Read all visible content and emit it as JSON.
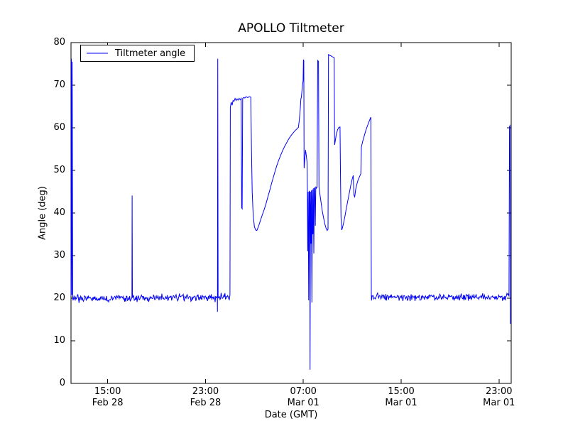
{
  "chart_data": {
    "type": "line",
    "title": "APOLLO Tiltmeter",
    "xlabel": "Date (GMT)",
    "ylabel": "Angle (deg)",
    "legend": [
      "Tiltmeter angle"
    ],
    "line_color": "#0000ff",
    "axis_color": "#000000",
    "background_color": "#ffffff",
    "ylim": [
      0,
      80
    ],
    "xlim_hours": [
      0,
      36
    ],
    "x_origin": "12:00 Feb 28 GMT",
    "grid": false,
    "legend_position": "upper left",
    "yticks": [
      0,
      10,
      20,
      30,
      40,
      50,
      60,
      70,
      80
    ],
    "xticks": [
      {
        "t": 3,
        "time": "15:00",
        "date": "Feb 28"
      },
      {
        "t": 11,
        "time": "23:00",
        "date": "Feb 28"
      },
      {
        "t": 19,
        "time": "07:00",
        "date": "Mar 01"
      },
      {
        "t": 27,
        "time": "15:00",
        "date": "Mar 01"
      },
      {
        "t": 35,
        "time": "23:00",
        "date": "Mar 01"
      }
    ],
    "baseline_segments": [
      {
        "t0": 0.16,
        "t1": 4.96,
        "mean": 20.0,
        "noise": 0.8
      },
      {
        "t0": 5.04,
        "t1": 11.94,
        "mean": 20.1,
        "noise": 0.8
      },
      {
        "t0": 12.05,
        "t1": 12.98,
        "mean": 20.3,
        "noise": 0.8
      },
      {
        "t0": 24.58,
        "t1": 35.8,
        "mean": 20.3,
        "noise": 0.8
      }
    ],
    "feature_points": [
      [
        0.0,
        20.5
      ],
      [
        0.03,
        76.2
      ],
      [
        0.07,
        20.8
      ],
      [
        0.1,
        75.5
      ],
      [
        0.14,
        20.5
      ],
      [
        4.98,
        20.2
      ],
      [
        5.0,
        44.1
      ],
      [
        5.02,
        20.5
      ],
      [
        11.96,
        20.4
      ],
      [
        11.98,
        16.8
      ],
      [
        12.0,
        76.2
      ],
      [
        12.03,
        20.6
      ],
      [
        13.0,
        20.8
      ],
      [
        13.03,
        64.8
      ],
      [
        13.1,
        66.0
      ],
      [
        13.18,
        65.3
      ],
      [
        13.25,
        66.4
      ],
      [
        13.33,
        66.2
      ],
      [
        13.42,
        66.9
      ],
      [
        13.5,
        66.4
      ],
      [
        13.58,
        66.8
      ],
      [
        13.67,
        66.5
      ],
      [
        13.75,
        66.9
      ],
      [
        13.85,
        66.6
      ],
      [
        13.92,
        66.9
      ],
      [
        13.96,
        41.2
      ],
      [
        14.0,
        41.0
      ],
      [
        14.04,
        66.9
      ],
      [
        14.12,
        67.1
      ],
      [
        14.22,
        67.0
      ],
      [
        14.32,
        67.3
      ],
      [
        14.45,
        67.1
      ],
      [
        14.58,
        67.3
      ],
      [
        14.7,
        67.2
      ],
      [
        14.76,
        55.0
      ],
      [
        14.82,
        45.0
      ],
      [
        14.9,
        39.5
      ],
      [
        15.0,
        36.8
      ],
      [
        15.1,
        36.0
      ],
      [
        15.2,
        35.9
      ],
      [
        15.35,
        37.0
      ],
      [
        15.5,
        38.3
      ],
      [
        15.65,
        39.6
      ],
      [
        15.8,
        40.8
      ],
      [
        15.95,
        42.2
      ],
      [
        16.1,
        43.8
      ],
      [
        16.25,
        45.3
      ],
      [
        16.4,
        46.9
      ],
      [
        16.55,
        48.4
      ],
      [
        16.7,
        49.9
      ],
      [
        16.85,
        51.3
      ],
      [
        17.0,
        52.5
      ],
      [
        17.15,
        53.6
      ],
      [
        17.3,
        54.6
      ],
      [
        17.45,
        55.5
      ],
      [
        17.6,
        56.3
      ],
      [
        17.75,
        57.1
      ],
      [
        17.9,
        57.8
      ],
      [
        18.05,
        58.4
      ],
      [
        18.2,
        58.9
      ],
      [
        18.35,
        59.4
      ],
      [
        18.5,
        59.8
      ],
      [
        18.6,
        60.1
      ],
      [
        18.68,
        62.0
      ],
      [
        18.75,
        64.5
      ],
      [
        18.8,
        66.8
      ],
      [
        18.84,
        67.2
      ],
      [
        18.88,
        68.5
      ],
      [
        18.93,
        70.0
      ],
      [
        18.98,
        71.0
      ],
      [
        19.01,
        76.0
      ],
      [
        19.04,
        75.8
      ],
      [
        19.06,
        50.5
      ],
      [
        19.12,
        52.8
      ],
      [
        19.18,
        54.8
      ],
      [
        19.24,
        53.5
      ],
      [
        19.3,
        52.0
      ],
      [
        19.33,
        45.2
      ],
      [
        19.36,
        31.0
      ],
      [
        19.4,
        45.0
      ],
      [
        19.44,
        19.5
      ],
      [
        19.48,
        45.2
      ],
      [
        19.52,
        44.8
      ],
      [
        19.55,
        3.2
      ],
      [
        19.58,
        45.0
      ],
      [
        19.62,
        32.8
      ],
      [
        19.66,
        45.3
      ],
      [
        19.7,
        19.0
      ],
      [
        19.74,
        45.5
      ],
      [
        19.78,
        35.0
      ],
      [
        19.82,
        45.8
      ],
      [
        19.86,
        30.5
      ],
      [
        19.9,
        46.0
      ],
      [
        19.94,
        45.7
      ],
      [
        19.98,
        37.0
      ],
      [
        20.02,
        46.2
      ],
      [
        20.06,
        45.8
      ],
      [
        20.12,
        46.0
      ],
      [
        20.18,
        75.8
      ],
      [
        20.24,
        75.6
      ],
      [
        20.28,
        46.2
      ],
      [
        20.35,
        44.5
      ],
      [
        20.45,
        42.5
      ],
      [
        20.55,
        40.5
      ],
      [
        20.65,
        39.0
      ],
      [
        20.75,
        37.5
      ],
      [
        20.85,
        36.5
      ],
      [
        20.95,
        35.9
      ],
      [
        21.02,
        36.2
      ],
      [
        21.06,
        77.2
      ],
      [
        21.15,
        77.0
      ],
      [
        21.25,
        76.9
      ],
      [
        21.35,
        76.7
      ],
      [
        21.45,
        76.6
      ],
      [
        21.52,
        76.5
      ],
      [
        21.56,
        56.0
      ],
      [
        21.62,
        57.0
      ],
      [
        21.7,
        58.5
      ],
      [
        21.8,
        59.5
      ],
      [
        21.9,
        60.1
      ],
      [
        22.0,
        60.2
      ],
      [
        22.04,
        48.5
      ],
      [
        22.08,
        39.0
      ],
      [
        22.14,
        36.0
      ],
      [
        22.2,
        36.5
      ],
      [
        22.3,
        37.8
      ],
      [
        22.4,
        39.2
      ],
      [
        22.5,
        40.8
      ],
      [
        22.6,
        42.3
      ],
      [
        22.7,
        43.8
      ],
      [
        22.8,
        45.3
      ],
      [
        22.9,
        46.8
      ],
      [
        23.0,
        48.0
      ],
      [
        23.08,
        48.8
      ],
      [
        23.14,
        44.2
      ],
      [
        23.2,
        43.8
      ],
      [
        23.28,
        45.5
      ],
      [
        23.38,
        46.8
      ],
      [
        23.48,
        47.8
      ],
      [
        23.58,
        48.4
      ],
      [
        23.64,
        48.8
      ],
      [
        23.7,
        49.2
      ],
      [
        23.75,
        55.5
      ],
      [
        23.85,
        56.8
      ],
      [
        23.95,
        57.8
      ],
      [
        24.05,
        58.8
      ],
      [
        24.15,
        59.7
      ],
      [
        24.25,
        60.5
      ],
      [
        24.35,
        61.3
      ],
      [
        24.45,
        62.0
      ],
      [
        24.52,
        62.5
      ],
      [
        24.56,
        20.8
      ],
      [
        35.82,
        20.4
      ],
      [
        35.86,
        60.3
      ],
      [
        35.9,
        60.5
      ],
      [
        35.93,
        14.0
      ]
    ]
  }
}
